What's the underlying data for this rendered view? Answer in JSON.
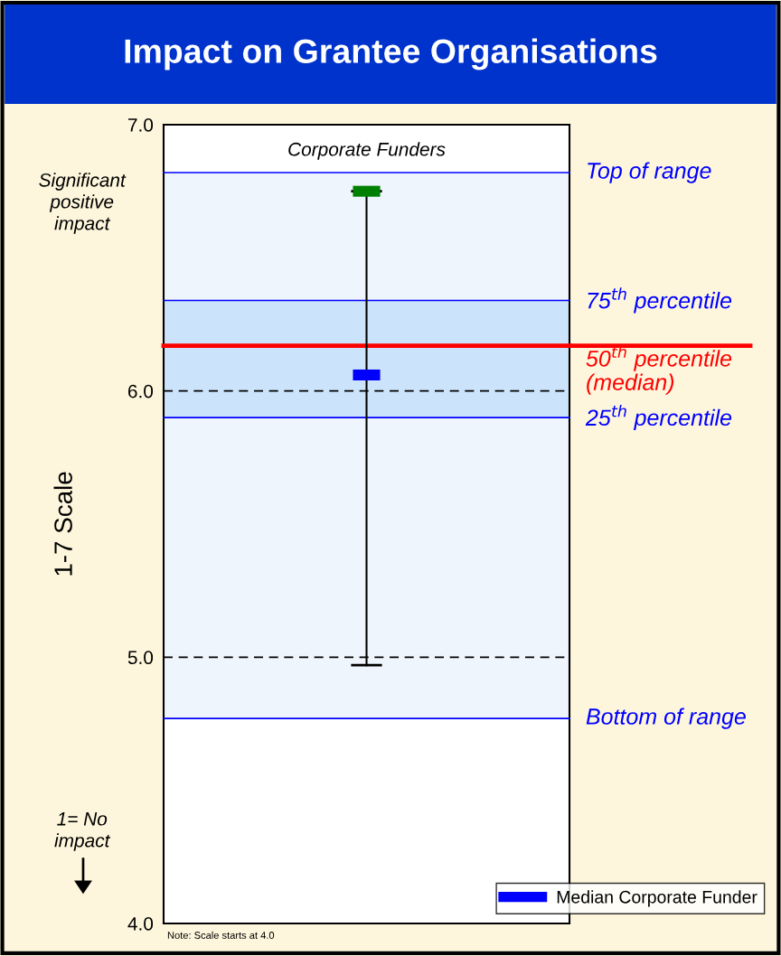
{
  "chart_data": {
    "type": "scatter",
    "title": "Impact on Grantee Organisations",
    "ylabel": "1-7 Scale",
    "categories": [
      null
    ],
    "series": [
      {
        "color": "#008000",
        "values": [
          6.75
        ],
        "errors": [
          [
            4.97,
            6.75
          ]
        ]
      },
      {
        "name": "Median Corporate Funder",
        "color": "#0000ff",
        "values": [
          6.06
        ]
      }
    ],
    "ylim": [
      4,
      7
    ],
    "yticks": [
      {
        "value": 4,
        "label": "4.0"
      },
      {
        "value": 5,
        "label": "5.0"
      },
      {
        "value": 6,
        "label": "6.0"
      },
      {
        "value": 7,
        "label": "7.0"
      }
    ],
    "grid": "y",
    "legend": "bottom right",
    "bands": [
      {
        "axis": "y",
        "from": 4.77,
        "to": 6.82,
        "color": "#eef5fd"
      },
      {
        "axis": "y",
        "from": 5.9,
        "to": 6.34,
        "color": "#cce4fb"
      }
    ],
    "ref_lines": [
      {
        "axis": "y",
        "value": 6.82,
        "label": "Top of range",
        "color": "#0000ff"
      },
      {
        "axis": "y",
        "value": 6.34,
        "label": "75$^{th}$ percentile",
        "color": "#0000ff"
      },
      {
        "axis": "y",
        "value": 6.17,
        "label": "50$^{th}$ percentile\n(median)",
        "color": "#ff0000"
      },
      {
        "axis": "y",
        "value": 5.9,
        "label": "25$^{th}$ percentile",
        "color": "#0000ff"
      },
      {
        "axis": "y",
        "value": 4.77,
        "label": "Bottom of range",
        "color": "#0000ff"
      }
    ],
    "annotations": [
      "Corporate Funders",
      "Significant\npositive\nimpact",
      "1= No\nimpact",
      "Note: Scale starts at 4.0"
    ]
  }
}
